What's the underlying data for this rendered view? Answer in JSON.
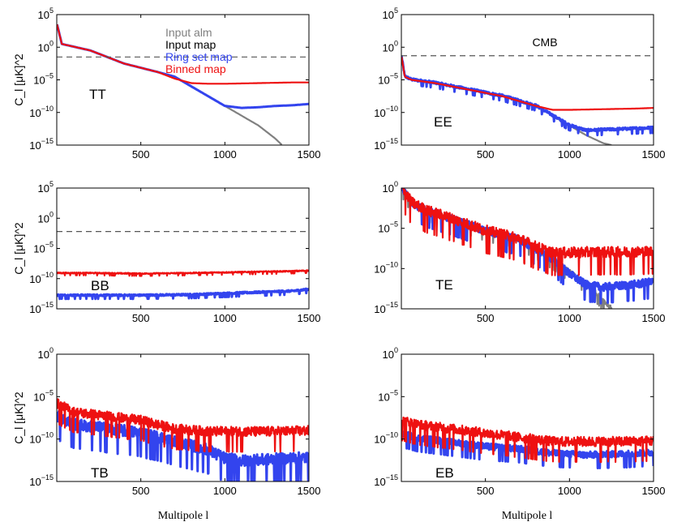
{
  "figure": {
    "xlabel_left": "Multipole l",
    "xlabel_right": "Multipole l",
    "ylabel": "C_l [μK]^2"
  },
  "legend": {
    "input_alm": "Input alm",
    "input_map": "Input map",
    "ring_set_map": "Ring set map",
    "binned_map": "Binned map",
    "cmb": "CMB"
  },
  "colors": {
    "input_alm": "#808080",
    "input_map": "#000000",
    "ring_set_map": "#3344ee",
    "binned_map": "#ee1111",
    "cmb": "#555555"
  },
  "chart_data": [
    {
      "type": "line",
      "panel": "TT",
      "label": "TT",
      "yscale": "log",
      "xlim": [
        0,
        1500
      ],
      "ylim_exp": [
        -15,
        5
      ],
      "xticks": [
        500,
        1000,
        1500
      ],
      "yticks_exp": [
        -15,
        -10,
        -5,
        0,
        5
      ],
      "series": [
        {
          "name": "Input alm",
          "key": "input_alm",
          "x": [
            2,
            30,
            200,
            400,
            600,
            700,
            800,
            900,
            1000,
            1100,
            1200,
            1300,
            1340
          ],
          "y_log10": [
            3.5,
            0.5,
            -0.5,
            -2.5,
            -3.8,
            -4.5,
            -6,
            -7.5,
            -9,
            -10.5,
            -12,
            -14,
            -15
          ],
          "noise": 0
        },
        {
          "name": "Ring set map",
          "key": "ring_set_map",
          "x": [
            2,
            30,
            200,
            400,
            600,
            700,
            800,
            900,
            1000,
            1100,
            1200,
            1300,
            1400,
            1500
          ],
          "y_log10": [
            3.5,
            0.5,
            -0.5,
            -2.5,
            -3.8,
            -4.5,
            -6,
            -7.5,
            -9,
            -9.3,
            -9.2,
            -9.0,
            -8.9,
            -8.7
          ],
          "noise": 0
        },
        {
          "name": "Binned map",
          "key": "binned_map",
          "x": [
            2,
            30,
            200,
            400,
            600,
            700,
            800,
            900,
            1000,
            1200,
            1400,
            1500
          ],
          "y_log10": [
            3.5,
            0.5,
            -0.5,
            -2.5,
            -3.8,
            -4.8,
            -5.5,
            -5.6,
            -5.6,
            -5.5,
            -5.4,
            -5.4
          ],
          "noise": 0
        },
        {
          "name": "CMB",
          "key": "cmb",
          "dashed": true,
          "x": [
            0,
            1500
          ],
          "y_log10": [
            -1.5,
            -1.5
          ],
          "noise": 0
        }
      ]
    },
    {
      "type": "line",
      "panel": "EE",
      "label": "EE",
      "yscale": "log",
      "xlim": [
        0,
        1500
      ],
      "ylim_exp": [
        -15,
        5
      ],
      "xticks": [
        500,
        1000,
        1500
      ],
      "yticks_exp": [
        -15,
        -10,
        -5,
        0,
        5
      ],
      "series": [
        {
          "name": "Input alm",
          "key": "input_alm",
          "x": [
            2,
            20,
            60,
            200,
            400,
            600,
            800,
            900,
            1000,
            1100,
            1200,
            1250
          ],
          "y_log10": [
            -1.5,
            -4.5,
            -5,
            -5.5,
            -6.5,
            -7.5,
            -9,
            -10.5,
            -12,
            -13.5,
            -14.7,
            -15
          ],
          "noise": 0
        },
        {
          "name": "Ring set map",
          "key": "ring_set_map",
          "x": [
            2,
            20,
            60,
            200,
            400,
            600,
            800,
            900,
            1000,
            1100,
            1200,
            1300,
            1400,
            1500
          ],
          "y_log10": [
            -1.5,
            -4.5,
            -5,
            -5.5,
            -6.5,
            -7.5,
            -9,
            -10.5,
            -12,
            -12.8,
            -12.7,
            -12.6,
            -12.5,
            -12.4
          ],
          "noise": 0.2
        },
        {
          "name": "Binned map",
          "key": "binned_map",
          "x": [
            2,
            20,
            60,
            200,
            400,
            600,
            800,
            900,
            1000,
            1200,
            1400,
            1500
          ],
          "y_log10": [
            -1.5,
            -4.5,
            -5,
            -5.5,
            -6.5,
            -7.5,
            -9,
            -9.6,
            -9.6,
            -9.5,
            -9.4,
            -9.3
          ],
          "noise": 0
        },
        {
          "name": "CMB",
          "key": "cmb",
          "dashed": true,
          "x": [
            0,
            1500
          ],
          "y_log10": [
            -1.3,
            -1.3
          ],
          "noise": 0
        }
      ]
    },
    {
      "type": "line",
      "panel": "BB",
      "label": "BB",
      "yscale": "log",
      "xlim": [
        0,
        1500
      ],
      "ylim_exp": [
        -15,
        5
      ],
      "xticks": [
        500,
        1000,
        1500
      ],
      "yticks_exp": [
        -15,
        -10,
        -5,
        0,
        5
      ],
      "series": [
        {
          "name": "Ring set map",
          "key": "ring_set_map",
          "x": [
            2,
            200,
            500,
            800,
            1000,
            1200,
            1400,
            1500
          ],
          "y_log10": [
            -12.8,
            -12.8,
            -12.8,
            -12.7,
            -12.5,
            -12.3,
            -12.1,
            -11.8
          ],
          "noise": 0.15
        },
        {
          "name": "Binned map",
          "key": "binned_map",
          "x": [
            2,
            200,
            500,
            800,
            1000,
            1200,
            1400,
            1500
          ],
          "y_log10": [
            -9.1,
            -9.1,
            -9.2,
            -9.1,
            -9.0,
            -8.9,
            -8.8,
            -8.7
          ],
          "noise": 0.1
        },
        {
          "name": "CMB",
          "key": "cmb",
          "dashed": true,
          "x": [
            0,
            1500
          ],
          "y_log10": [
            -2.2,
            -2.2
          ],
          "noise": 0
        }
      ]
    },
    {
      "type": "line",
      "panel": "TE",
      "label": "TE",
      "yscale": "log",
      "xlim": [
        0,
        1500
      ],
      "ylim_exp": [
        -15,
        0
      ],
      "xticks": [
        500,
        1000,
        1500
      ],
      "yticks_exp": [
        -15,
        -10,
        -5,
        0
      ],
      "series": [
        {
          "name": "Input alm",
          "key": "input_alm",
          "x": [
            2,
            60,
            150,
            300,
            500,
            700,
            900,
            1000,
            1100,
            1200,
            1250
          ],
          "y_log10": [
            0,
            -2,
            -3,
            -4,
            -5.5,
            -6.5,
            -9,
            -10.5,
            -12,
            -14,
            -15
          ],
          "noise": 0.3
        },
        {
          "name": "Ring set map",
          "key": "ring_set_map",
          "x": [
            2,
            60,
            150,
            300,
            500,
            700,
            900,
            1000,
            1100,
            1200,
            1300,
            1400,
            1500
          ],
          "y_log10": [
            0,
            -2,
            -3,
            -4,
            -5.5,
            -6.5,
            -9,
            -10.8,
            -12.2,
            -12.5,
            -12.3,
            -12.1,
            -11.8
          ],
          "noise": 0.5
        },
        {
          "name": "Binned map",
          "key": "binned_map",
          "x": [
            2,
            60,
            150,
            300,
            500,
            700,
            800,
            900,
            1100,
            1300,
            1500
          ],
          "y_log10": [
            0,
            -2,
            -3,
            -4,
            -5.5,
            -6.5,
            -7.5,
            -8.3,
            -8.2,
            -8.2,
            -8.1
          ],
          "noise": 0.7
        }
      ]
    },
    {
      "type": "line",
      "panel": "TB",
      "label": "TB",
      "yscale": "log",
      "xlim": [
        0,
        1500
      ],
      "ylim_exp": [
        -15,
        0
      ],
      "xticks": [
        500,
        1000,
        1500
      ],
      "yticks_exp": [
        -15,
        -10,
        -5,
        0
      ],
      "series": [
        {
          "name": "Ring set map",
          "key": "ring_set_map",
          "x": [
            2,
            100,
            300,
            500,
            700,
            900,
            1000,
            1100,
            1300,
            1500
          ],
          "y_log10": [
            -7.5,
            -8.5,
            -9,
            -9.5,
            -10.5,
            -11.5,
            -12.5,
            -12.8,
            -12.6,
            -12.4
          ],
          "noise": 0.7
        },
        {
          "name": "Binned map",
          "key": "binned_map",
          "x": [
            2,
            100,
            300,
            500,
            700,
            900,
            1100,
            1300,
            1500
          ],
          "y_log10": [
            -6,
            -7,
            -7.5,
            -8,
            -9,
            -9.3,
            -9.3,
            -9.3,
            -9.2
          ],
          "noise": 0.6
        }
      ]
    },
    {
      "type": "line",
      "panel": "EB",
      "label": "EB",
      "yscale": "log",
      "xlim": [
        0,
        1500
      ],
      "ylim_exp": [
        -15,
        0
      ],
      "xticks": [
        500,
        1000,
        1500
      ],
      "yticks_exp": [
        -15,
        -10,
        -5,
        0
      ],
      "series": [
        {
          "name": "Ring set map",
          "key": "ring_set_map",
          "x": [
            2,
            100,
            300,
            500,
            700,
            900,
            1100,
            1300,
            1500
          ],
          "y_log10": [
            -9.5,
            -10,
            -10.5,
            -11,
            -11.3,
            -11.8,
            -12,
            -11.9,
            -11.7
          ],
          "noise": 0.4
        },
        {
          "name": "Binned map",
          "key": "binned_map",
          "x": [
            2,
            100,
            300,
            500,
            700,
            900,
            1100,
            1300,
            1500
          ],
          "y_log10": [
            -8,
            -8.5,
            -9,
            -9.5,
            -10,
            -10.5,
            -10.5,
            -10.5,
            -10.4
          ],
          "noise": 0.6
        }
      ]
    }
  ]
}
